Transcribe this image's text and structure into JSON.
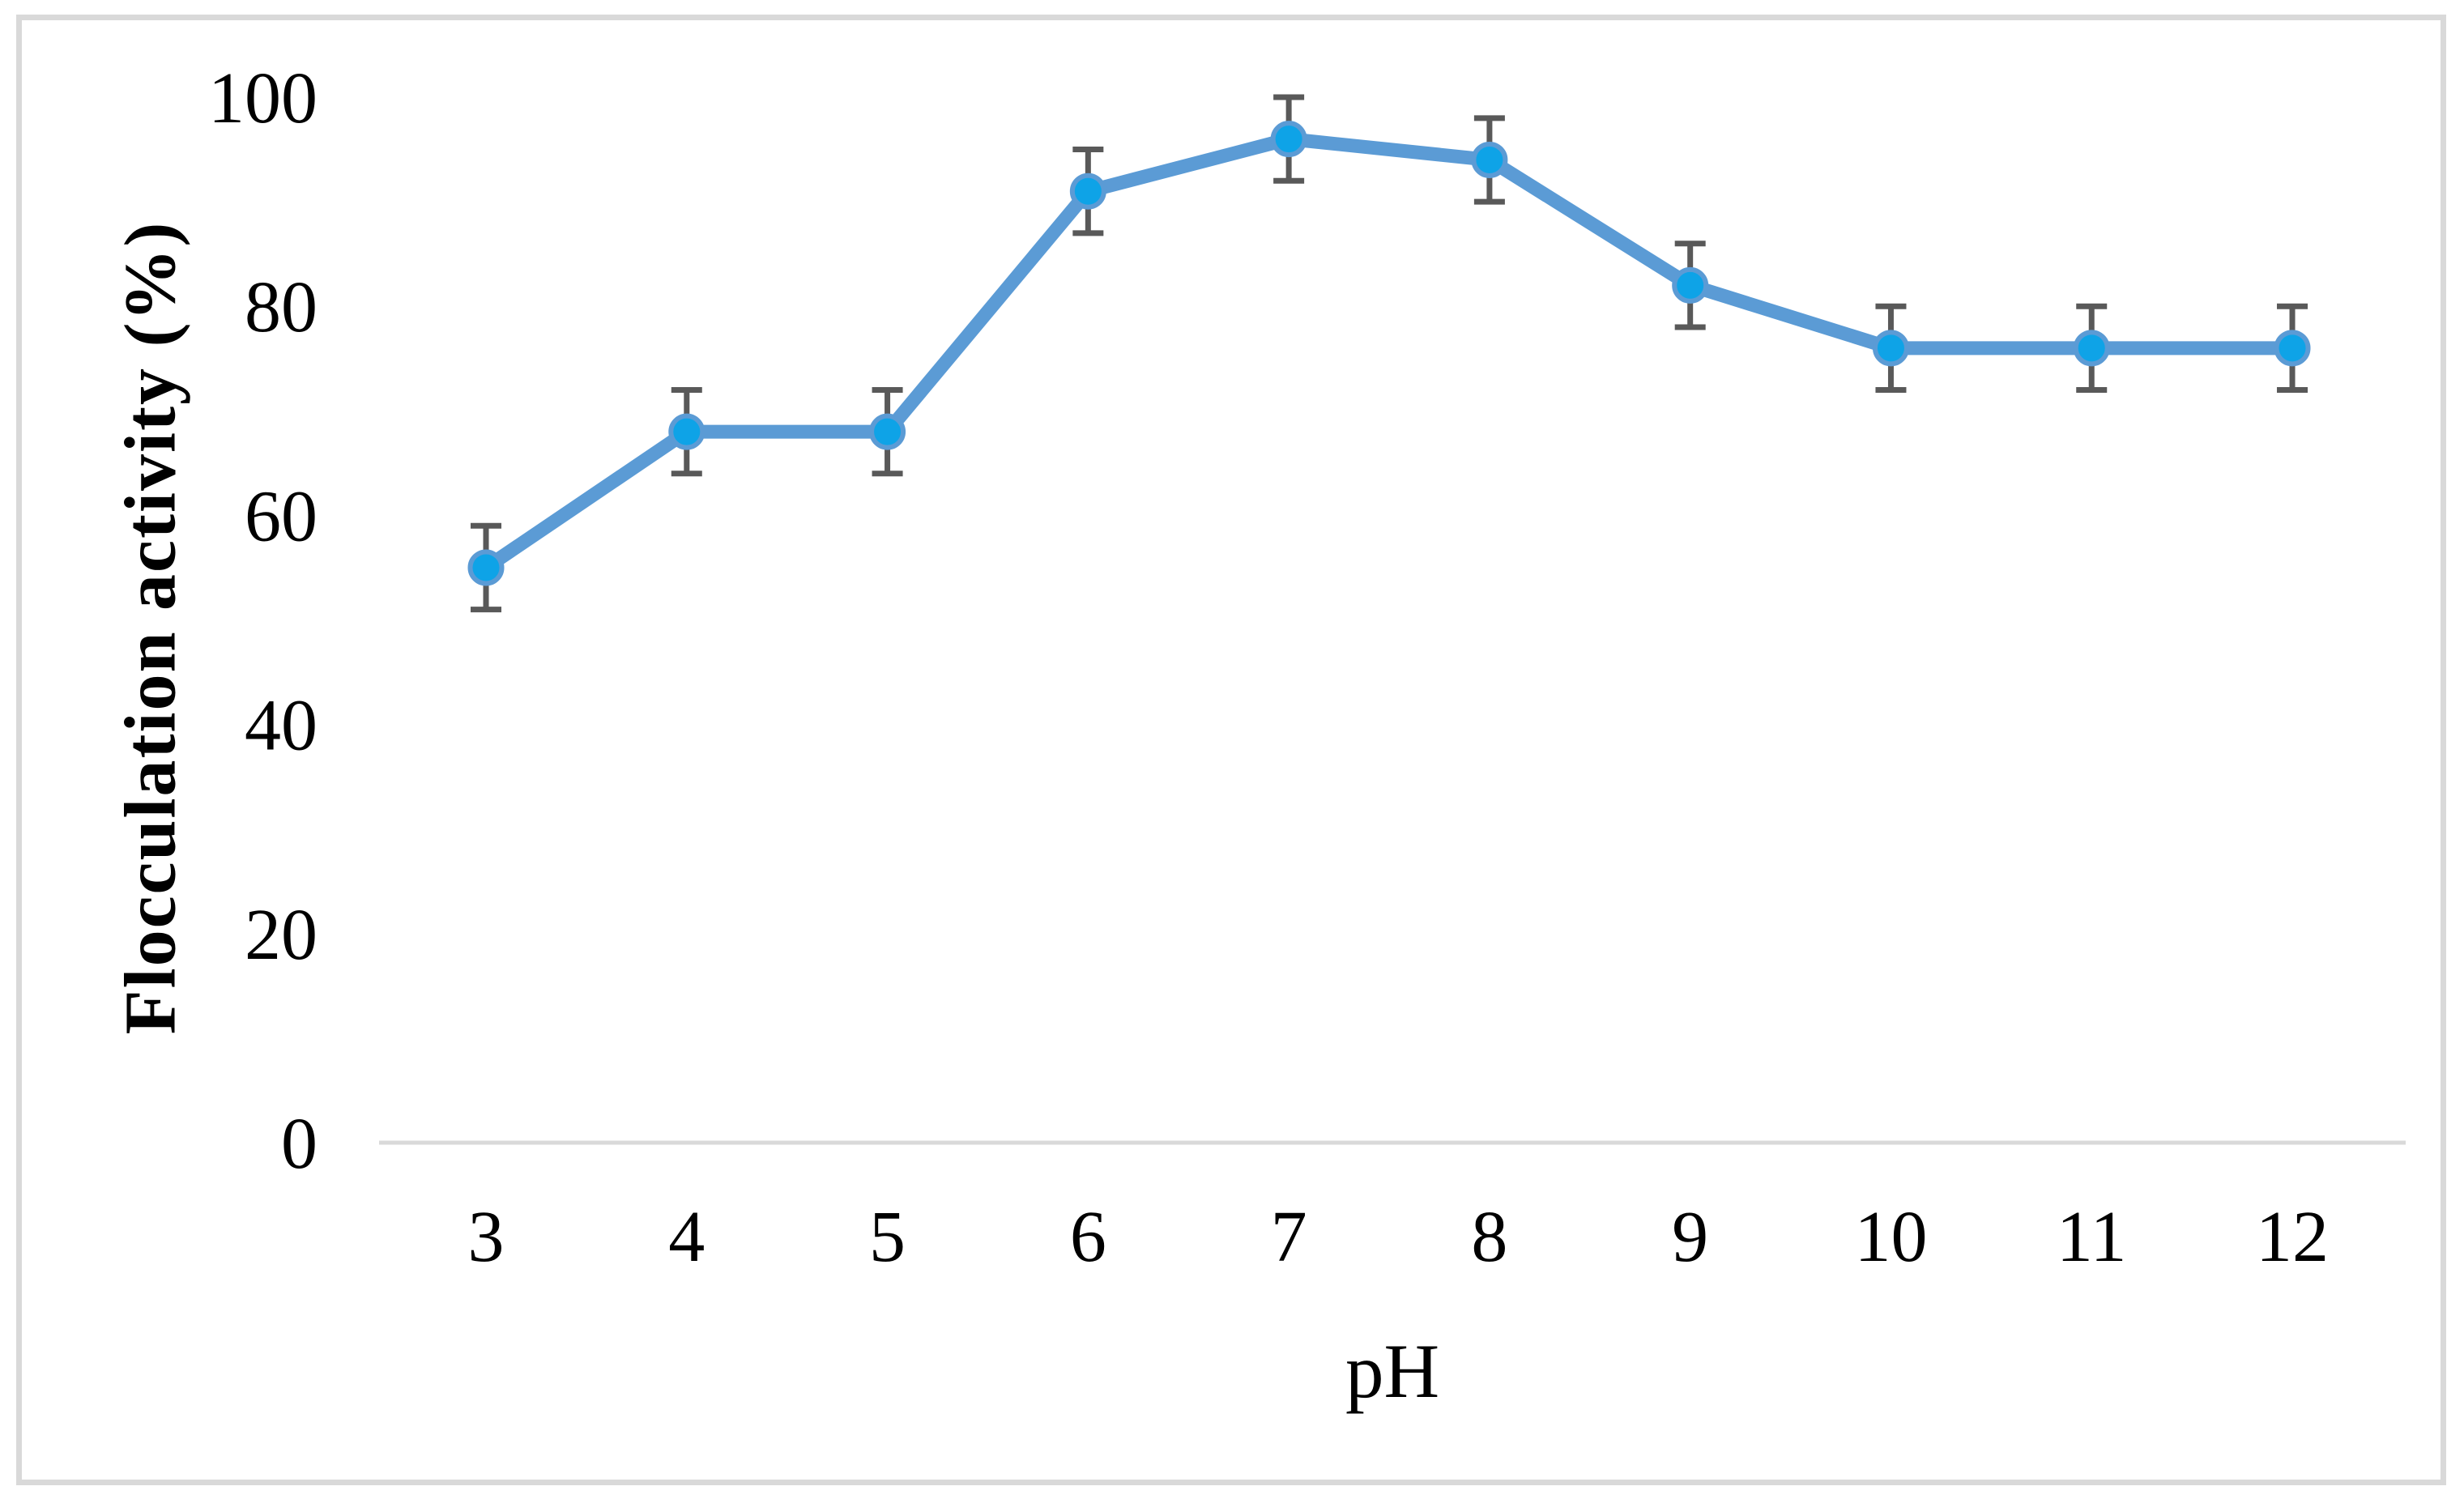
{
  "chart_data": {
    "type": "line",
    "title": "",
    "xlabel": "pH",
    "ylabel": "Flocculation activity (%)",
    "x": [
      3,
      4,
      5,
      6,
      7,
      8,
      9,
      10,
      11,
      12
    ],
    "series": [
      {
        "name": "Flocculation activity",
        "values": [
          55,
          68,
          68,
          91,
          96,
          94,
          82,
          76,
          76,
          76
        ],
        "error": [
          4,
          4,
          4,
          4,
          4,
          4,
          4,
          4,
          4,
          4
        ]
      }
    ],
    "ylim": [
      0,
      100
    ],
    "yticks": [
      0,
      20,
      40,
      60,
      80,
      100
    ],
    "grid": false,
    "legend_position": "none",
    "colors": {
      "line": "#5B9BD5",
      "marker_fill": "#0EA3E7",
      "marker_edge": "#5B9BD5",
      "error_bar": "#595959",
      "axis_line": "#D9D9D9",
      "border": "#D9D9D9",
      "text": "#000000"
    }
  }
}
